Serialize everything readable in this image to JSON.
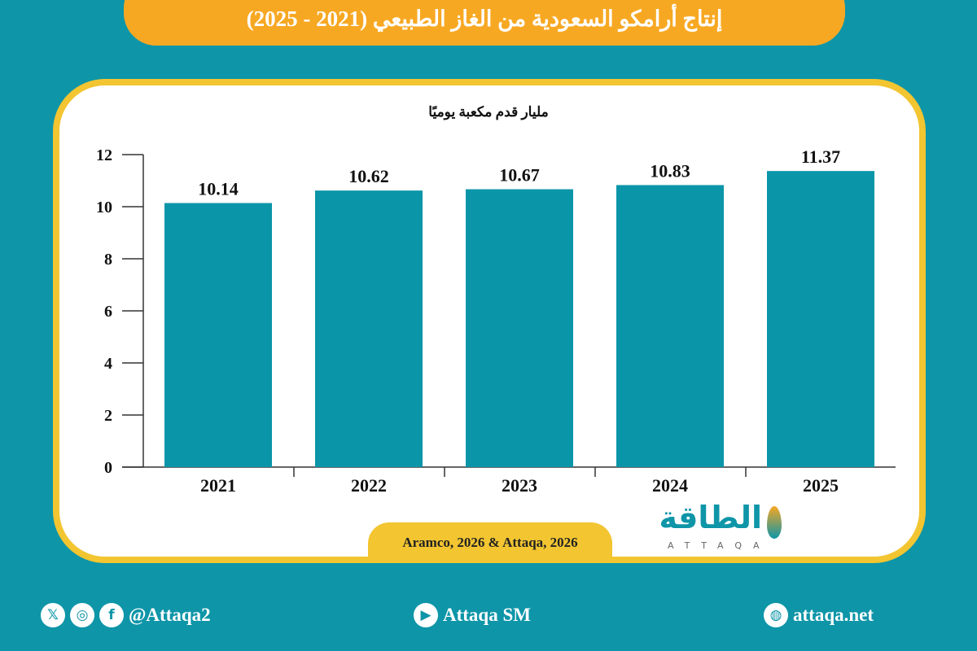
{
  "header": {
    "title": "إنتاج أرامكو السعودية من الغاز الطبيعي  (2021 - 2025)"
  },
  "chart_data": {
    "type": "bar",
    "title": "إنتاج أرامكو السعودية من الغاز الطبيعي  (2021 - 2025)",
    "ylabel": "مليار قدم مكعبة يوميًا",
    "xlabel": "",
    "categories": [
      "2021",
      "2022",
      "2023",
      "2024",
      "2025"
    ],
    "values": [
      10.14,
      10.62,
      10.67,
      10.83,
      11.37
    ],
    "value_labels": [
      "10.14",
      "10.62",
      "10.67",
      "10.83",
      "11.37"
    ],
    "ylim": [
      0,
      12
    ],
    "yticks": [
      "0",
      "2",
      "4",
      "6",
      "8",
      "10",
      "12"
    ],
    "grid": false,
    "bar_color": "#0a95a8"
  },
  "source": "Aramco, 2026 & Attaqa, 2026",
  "logo": {
    "arabic": "الطاقة",
    "english": "ATTAQA"
  },
  "footer": {
    "social_handle": "@Attaqa2",
    "youtube": "Attaqa SM",
    "website": "attaqa.net"
  },
  "colors": {
    "background": "#0e95a8",
    "title_bar": "#f7a823",
    "card_border": "#f2c531"
  }
}
